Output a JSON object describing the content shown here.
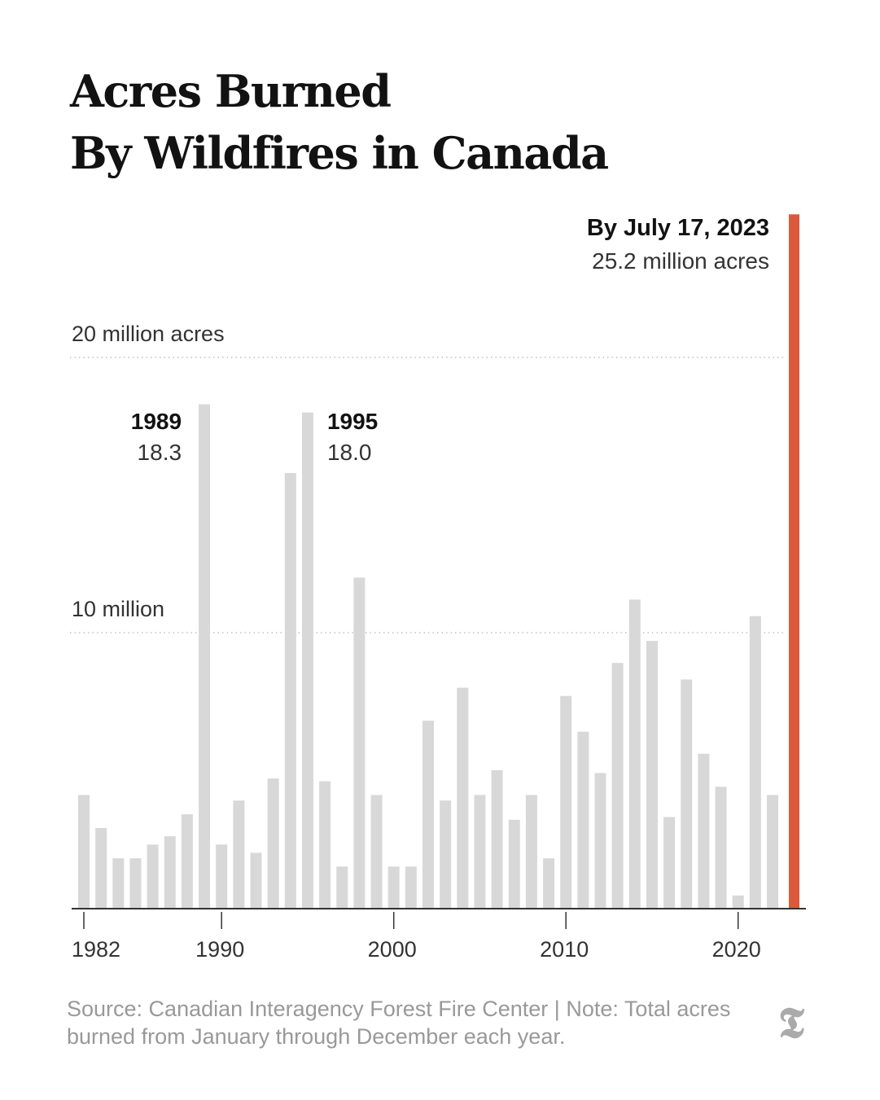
{
  "title_lines": [
    "Acres Burned",
    "By Wildfires in Canada"
  ],
  "chart_data": {
    "type": "bar",
    "title": "Acres Burned By Wildfires in Canada",
    "unit": "million acres",
    "x": [
      1982,
      1983,
      1984,
      1985,
      1986,
      1987,
      1988,
      1989,
      1990,
      1991,
      1992,
      1993,
      1994,
      1995,
      1996,
      1997,
      1998,
      1999,
      2000,
      2001,
      2002,
      2003,
      2004,
      2005,
      2006,
      2007,
      2008,
      2009,
      2010,
      2011,
      2012,
      2013,
      2014,
      2015,
      2016,
      2017,
      2018,
      2019,
      2020,
      2021,
      2022,
      2023
    ],
    "values": [
      4.1,
      2.9,
      1.8,
      1.8,
      2.3,
      2.6,
      3.4,
      18.3,
      2.3,
      3.9,
      2.0,
      4.7,
      15.8,
      18.0,
      4.6,
      1.5,
      12.0,
      4.1,
      1.5,
      1.5,
      6.8,
      3.9,
      8.0,
      4.1,
      5.0,
      3.2,
      4.1,
      1.8,
      7.7,
      6.4,
      4.9,
      8.9,
      11.2,
      9.7,
      3.3,
      8.3,
      5.6,
      4.4,
      0.45,
      10.6,
      4.1,
      25.2
    ],
    "highlight": {
      "year": 2023,
      "color": "#dc5a3b",
      "label": "By July 17, 2023",
      "value_label": "25.2 million acres"
    },
    "bar_color": "#d8d8d8",
    "ylim": [
      0,
      25.2
    ],
    "gridlines": [
      {
        "value": 20,
        "label": "20 million acres"
      },
      {
        "value": 10,
        "label": "10 million"
      }
    ],
    "annotations": [
      {
        "year": 1989,
        "label": "1989",
        "value_label": "18.3",
        "side": "left"
      },
      {
        "year": 1995,
        "label": "1995",
        "value_label": "18.0",
        "side": "right"
      }
    ],
    "x_ticks": [
      {
        "year": 1982,
        "label": "1982"
      },
      {
        "year": 1990,
        "label": "1990"
      },
      {
        "year": 2000,
        "label": "2000"
      },
      {
        "year": 2010,
        "label": "2010"
      },
      {
        "year": 2020,
        "label": "2020"
      }
    ]
  },
  "source_note": "Source: Canadian Interagency Forest Fire Center | Note: Total acres burned from January through December each year.",
  "logo": {
    "name": "nyt-t-logo",
    "glyph": "𝕿"
  }
}
